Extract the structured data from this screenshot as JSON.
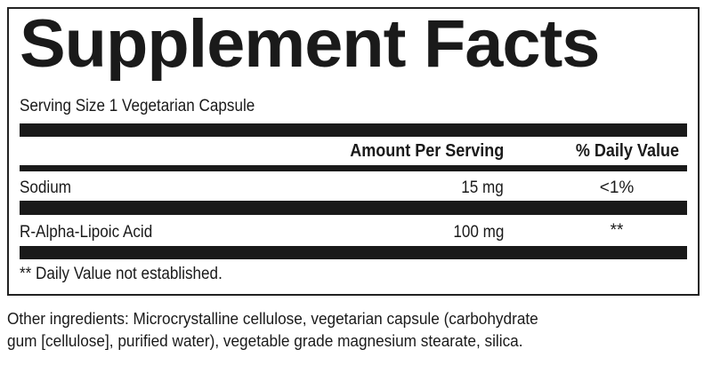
{
  "title": "Supplement Facts",
  "serving_size": "Serving Size 1 Vegetarian Capsule",
  "headers": {
    "amount": "Amount Per Serving",
    "daily_value": "% Daily Value"
  },
  "rows": [
    {
      "name": "Sodium",
      "amount": "15 mg",
      "daily_value": "<1%"
    },
    {
      "name": "R-Alpha-Lipoic Acid",
      "amount": "100 mg",
      "daily_value": "**"
    }
  ],
  "footnote": "** Daily Value not established.",
  "other_ingredients": [
    "Other ingredients: Microcrystalline cellulose, vegetarian capsule (carbohydrate",
    "gum [cellulose], purified water), vegetable grade magnesium stearate, silica."
  ]
}
